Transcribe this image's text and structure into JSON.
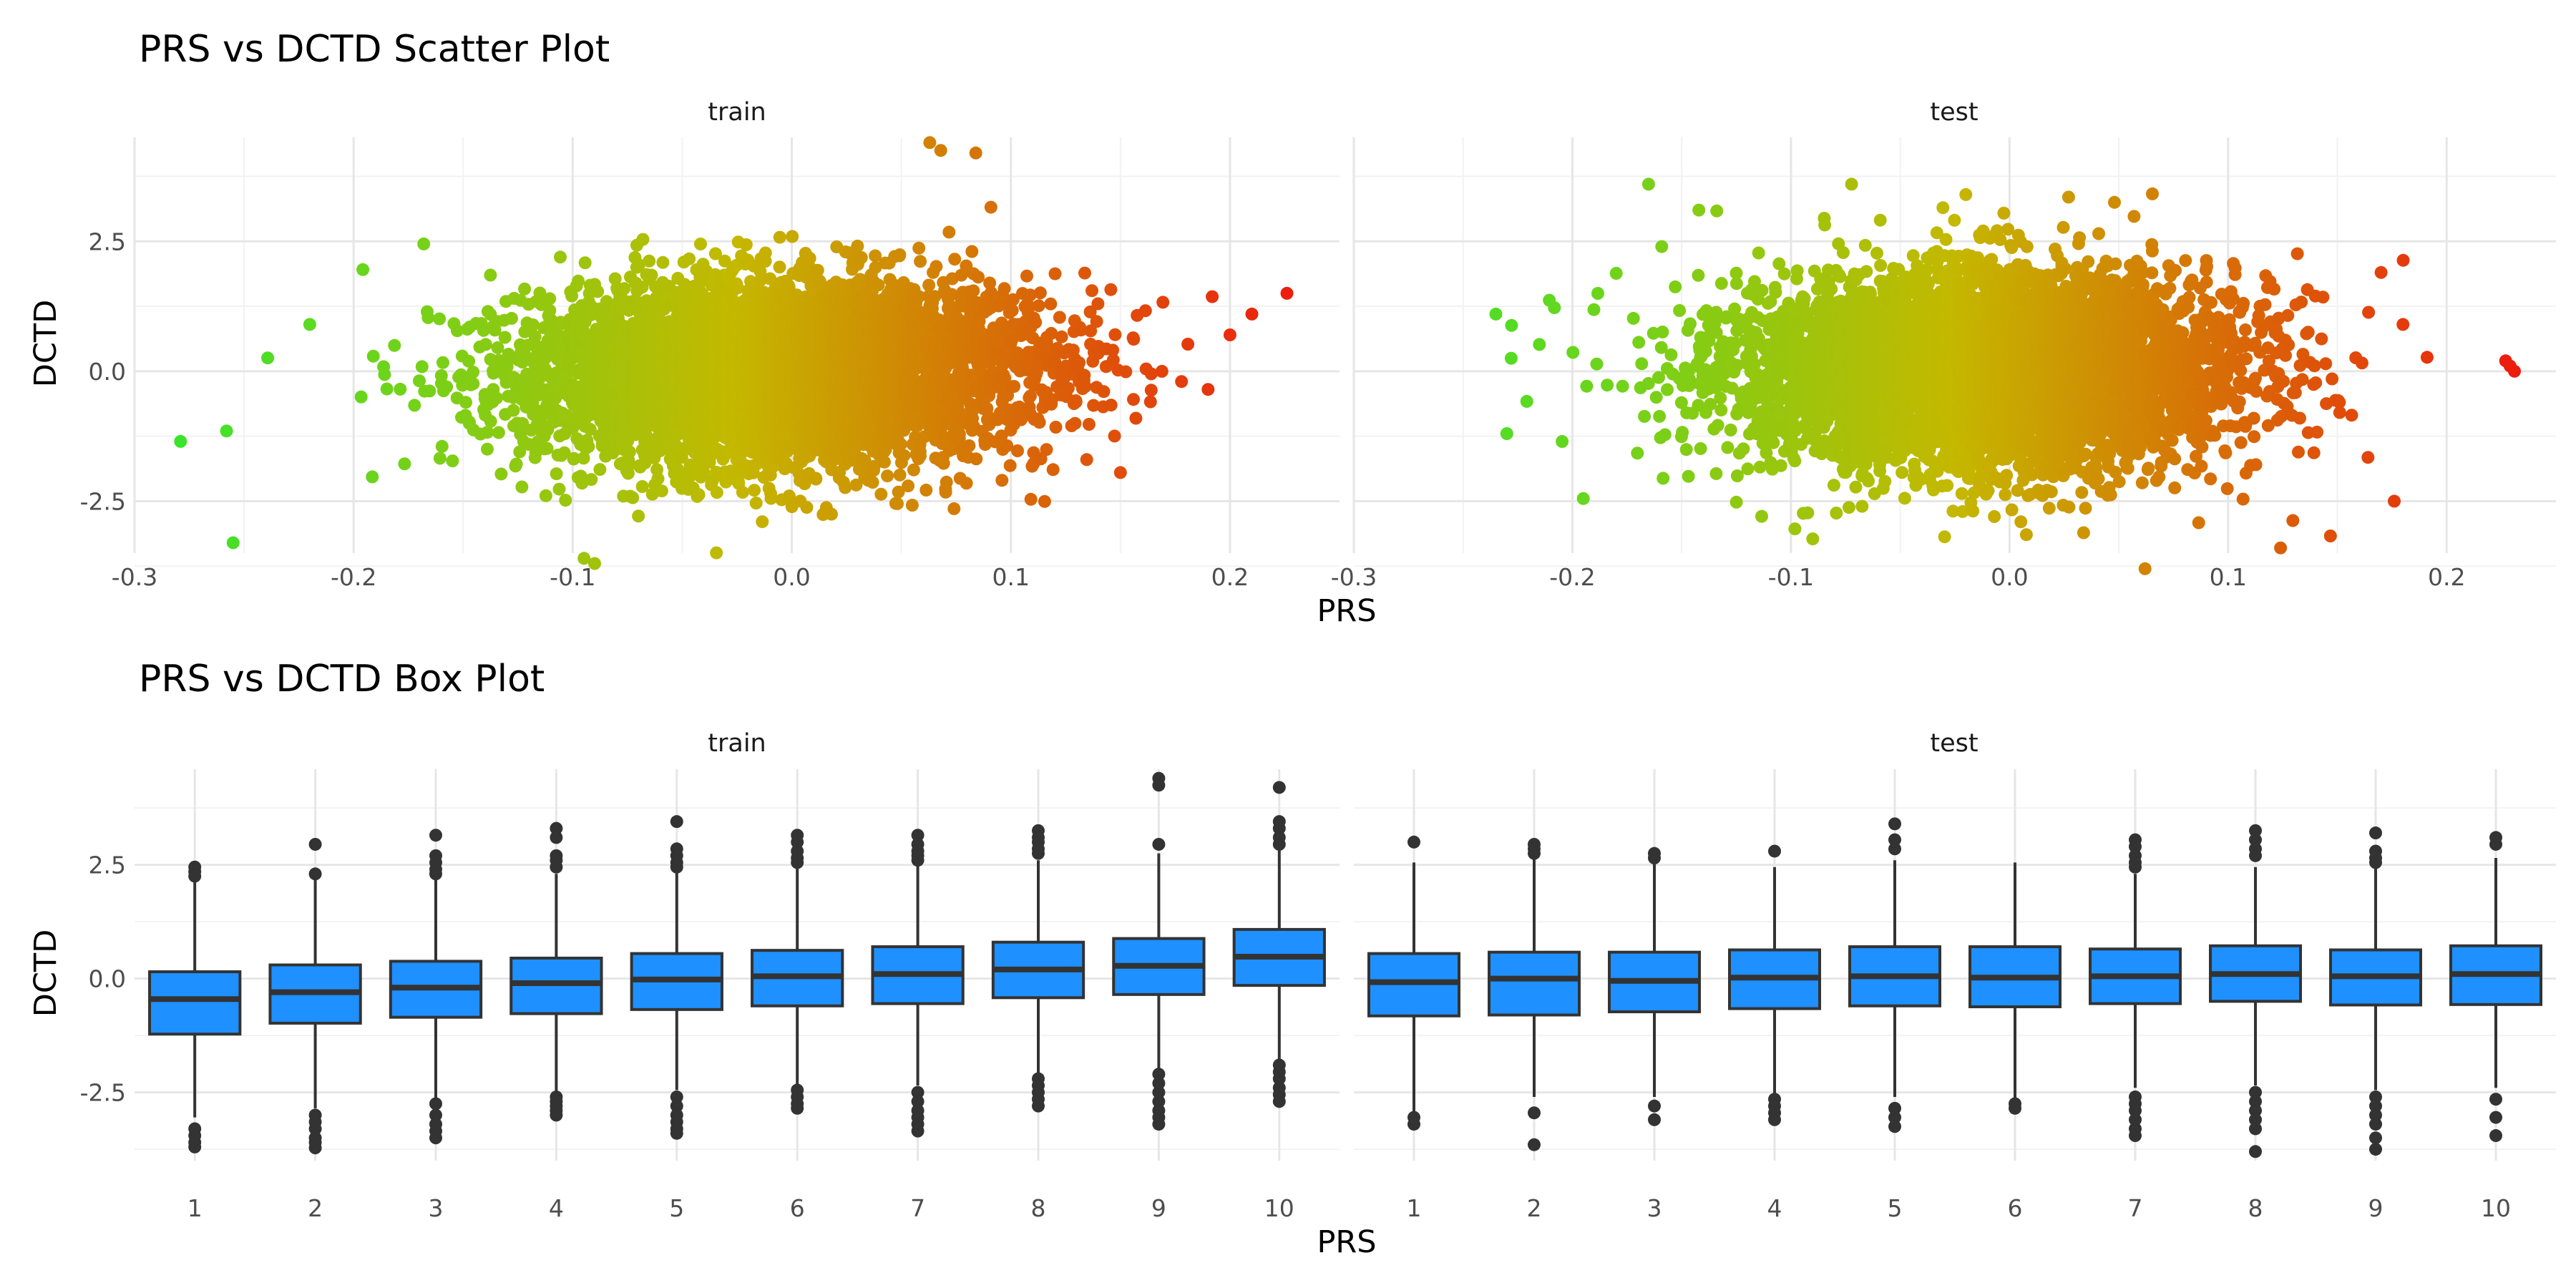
{
  "figure": {
    "scatter_title": "PRS vs DCTD Scatter Plot",
    "box_title": "PRS vs DCTD Box Plot"
  },
  "chart_data": [
    {
      "type": "scatter",
      "title": "PRS vs DCTD Scatter Plot",
      "xlabel": "PRS",
      "ylabel": "DCTD",
      "facets": [
        "train",
        "test"
      ],
      "xlim": [
        -0.3,
        0.25
      ],
      "ylim": [
        -3.5,
        4.5
      ],
      "x_ticks": [
        -0.3,
        -0.2,
        -0.1,
        0.0,
        0.1,
        0.2
      ],
      "x_tick_labels": [
        "-0.3",
        "-0.2",
        "-0.1",
        "0.0",
        "0.1",
        "0.2"
      ],
      "y_ticks": [
        -2.5,
        0.0,
        2.5
      ],
      "y_tick_labels": [
        "-2.5",
        "0.0",
        "2.5"
      ],
      "color_scale": {
        "low": "#2fe82f",
        "mid": "#c4b800",
        "high": "#f01010"
      },
      "grid": true,
      "legend": "none",
      "series": [
        {
          "facet": "train",
          "x_mean": -0.005,
          "x_sd": 0.058,
          "y_center": 0.0,
          "y_slope": 4.8,
          "y_sd": 0.9,
          "points": [
            {
              "x": -0.279,
              "y": -1.35
            },
            {
              "x": -0.258,
              "y": -1.15
            },
            {
              "x": -0.255,
              "y": -3.3
            },
            {
              "x": -0.168,
              "y": 2.45
            },
            {
              "x": 0.063,
              "y": 4.4
            },
            {
              "x": 0.068,
              "y": 4.25
            },
            {
              "x": 0.084,
              "y": 4.2
            },
            {
              "x": 0.226,
              "y": 1.5
            },
            {
              "x": 0.21,
              "y": 1.1
            },
            {
              "x": 0.2,
              "y": 0.7
            },
            {
              "x": 0.15,
              "y": -1.95
            },
            {
              "x": -0.09,
              "y": -3.7
            },
            {
              "x": 0.19,
              "y": -0.35
            },
            {
              "x": -0.22,
              "y": 0.9
            }
          ]
        },
        {
          "facet": "test",
          "x_mean": -0.01,
          "x_sd": 0.058,
          "y_center": 0.0,
          "y_slope": 0.0,
          "y_sd": 0.95,
          "points": [
            {
              "x": -0.235,
              "y": 1.1
            },
            {
              "x": -0.228,
              "y": 0.25
            },
            {
              "x": -0.23,
              "y": -1.2
            },
            {
              "x": 0.227,
              "y": 0.2
            },
            {
              "x": 0.229,
              "y": 0.1
            },
            {
              "x": 0.231,
              "y": 0.0
            },
            {
              "x": 0.062,
              "y": -3.8
            },
            {
              "x": -0.02,
              "y": 3.4
            },
            {
              "x": 0.048,
              "y": 3.25
            },
            {
              "x": 0.17,
              "y": 1.9
            },
            {
              "x": 0.176,
              "y": -2.5
            },
            {
              "x": 0.18,
              "y": 0.9
            },
            {
              "x": 0.124,
              "y": -3.4
            },
            {
              "x": -0.195,
              "y": -2.45
            }
          ]
        }
      ]
    },
    {
      "type": "box",
      "title": "PRS vs DCTD Box Plot",
      "xlabel": "PRS",
      "ylabel": "DCTD",
      "facets": [
        "train",
        "test"
      ],
      "categories": [
        "1",
        "2",
        "3",
        "4",
        "5",
        "6",
        "7",
        "8",
        "9",
        "10"
      ],
      "ylim": [
        -4.0,
        4.6
      ],
      "y_ticks": [
        -2.5,
        0.0,
        2.5
      ],
      "y_tick_labels": [
        "-2.5",
        "0.0",
        "2.5"
      ],
      "box_color": "#1e90ff",
      "grid": true,
      "legend": "none",
      "series": [
        {
          "facet": "train",
          "boxes": [
            {
              "category": "1",
              "lower": -3.05,
              "q1": -1.22,
              "median": -0.45,
              "q3": 0.15,
              "upper": 2.2,
              "outliers": [
                2.45,
                2.35,
                2.25,
                -3.3,
                -3.45,
                -3.6,
                -3.7
              ]
            },
            {
              "category": "2",
              "lower": -2.85,
              "q1": -0.98,
              "median": -0.3,
              "q3": 0.3,
              "upper": 2.2,
              "outliers": [
                2.95,
                2.3,
                -3.0,
                -3.15,
                -3.3,
                -3.5,
                -3.6,
                -3.72
              ]
            },
            {
              "category": "3",
              "lower": -2.65,
              "q1": -0.85,
              "median": -0.2,
              "q3": 0.38,
              "upper": 2.2,
              "outliers": [
                3.15,
                2.7,
                2.55,
                2.4,
                2.3,
                -2.75,
                -3.0,
                -3.2,
                -3.35,
                -3.5
              ]
            },
            {
              "category": "4",
              "lower": -2.5,
              "q1": -0.77,
              "median": -0.1,
              "q3": 0.45,
              "upper": 2.3,
              "outliers": [
                3.3,
                3.1,
                2.7,
                2.6,
                2.45,
                -2.6,
                -2.7,
                -2.8,
                -2.9,
                -3.0
              ]
            },
            {
              "category": "5",
              "lower": -2.45,
              "q1": -0.68,
              "median": -0.02,
              "q3": 0.55,
              "upper": 2.35,
              "outliers": [
                3.45,
                2.85,
                2.7,
                2.55,
                2.45,
                -2.6,
                -2.8,
                -3.0,
                -3.15,
                -3.3,
                -3.4
              ]
            },
            {
              "category": "6",
              "lower": -2.35,
              "q1": -0.6,
              "median": 0.05,
              "q3": 0.62,
              "upper": 2.45,
              "outliers": [
                3.15,
                3.0,
                2.8,
                2.65,
                2.55,
                -2.45,
                -2.6,
                -2.75,
                -2.85
              ]
            },
            {
              "category": "7",
              "lower": -2.35,
              "q1": -0.55,
              "median": 0.1,
              "q3": 0.7,
              "upper": 2.5,
              "outliers": [
                3.15,
                2.95,
                2.8,
                2.7,
                2.6,
                -2.5,
                -2.7,
                -2.9,
                -3.05,
                -3.2,
                -3.35
              ]
            },
            {
              "category": "8",
              "lower": -2.1,
              "q1": -0.42,
              "median": 0.2,
              "q3": 0.8,
              "upper": 2.6,
              "outliers": [
                3.25,
                3.1,
                3.0,
                2.85,
                2.75,
                -2.2,
                -2.35,
                -2.5,
                -2.65,
                -2.8
              ]
            },
            {
              "category": "9",
              "lower": -2.0,
              "q1": -0.35,
              "median": 0.28,
              "q3": 0.88,
              "upper": 2.75,
              "outliers": [
                4.4,
                4.25,
                2.95,
                -2.1,
                -2.3,
                -2.5,
                -2.7,
                -2.9,
                -3.05,
                -3.2
              ]
            },
            {
              "category": "10",
              "lower": -1.8,
              "q1": -0.15,
              "median": 0.48,
              "q3": 1.08,
              "upper": 2.85,
              "outliers": [
                4.2,
                3.45,
                3.3,
                3.1,
                2.95,
                -1.9,
                -2.05,
                -2.2,
                -2.4,
                -2.55,
                -2.7
              ]
            }
          ]
        },
        {
          "facet": "test",
          "boxes": [
            {
              "category": "1",
              "lower": -2.95,
              "q1": -0.82,
              "median": -0.08,
              "q3": 0.55,
              "upper": 2.55,
              "outliers": [
                3.0,
                -3.05,
                -3.2
              ]
            },
            {
              "category": "2",
              "lower": -2.6,
              "q1": -0.8,
              "median": 0.0,
              "q3": 0.58,
              "upper": 2.65,
              "outliers": [
                2.95,
                2.85,
                2.75,
                -2.95,
                -3.65
              ]
            },
            {
              "category": "3",
              "lower": -2.6,
              "q1": -0.73,
              "median": -0.05,
              "q3": 0.58,
              "upper": 2.55,
              "outliers": [
                2.75,
                2.65,
                -2.8,
                -3.1
              ]
            },
            {
              "category": "4",
              "lower": -2.55,
              "q1": -0.66,
              "median": 0.02,
              "q3": 0.63,
              "upper": 2.45,
              "outliers": [
                2.8,
                -2.65,
                -2.8,
                -2.95,
                -3.1
              ]
            },
            {
              "category": "5",
              "lower": -2.6,
              "q1": -0.6,
              "median": 0.05,
              "q3": 0.7,
              "upper": 2.6,
              "outliers": [
                3.4,
                3.05,
                2.85,
                -2.85,
                -3.05,
                -3.25
              ]
            },
            {
              "category": "6",
              "lower": -2.7,
              "q1": -0.62,
              "median": 0.02,
              "q3": 0.7,
              "upper": 2.55,
              "outliers": [
                -2.75,
                -2.85
              ]
            },
            {
              "category": "7",
              "lower": -2.4,
              "q1": -0.55,
              "median": 0.05,
              "q3": 0.65,
              "upper": 2.3,
              "outliers": [
                3.05,
                2.9,
                2.7,
                2.55,
                2.45,
                -2.6,
                -2.75,
                -2.9,
                -3.1,
                -3.3,
                -3.45
              ]
            },
            {
              "category": "8",
              "lower": -2.35,
              "q1": -0.5,
              "median": 0.1,
              "q3": 0.72,
              "upper": 2.45,
              "outliers": [
                3.25,
                3.05,
                2.85,
                2.7,
                -2.5,
                -2.7,
                -2.9,
                -3.1,
                -3.3,
                -3.8
              ]
            },
            {
              "category": "9",
              "lower": -2.45,
              "q1": -0.58,
              "median": 0.05,
              "q3": 0.63,
              "upper": 2.45,
              "outliers": [
                3.2,
                2.8,
                2.65,
                2.55,
                -2.6,
                -2.8,
                -3.0,
                -3.2,
                -3.5,
                -3.75
              ]
            },
            {
              "category": "10",
              "lower": -2.4,
              "q1": -0.57,
              "median": 0.1,
              "q3": 0.72,
              "upper": 2.65,
              "outliers": [
                3.1,
                2.95,
                -2.65,
                -3.05,
                -3.45
              ]
            }
          ]
        }
      ]
    }
  ]
}
